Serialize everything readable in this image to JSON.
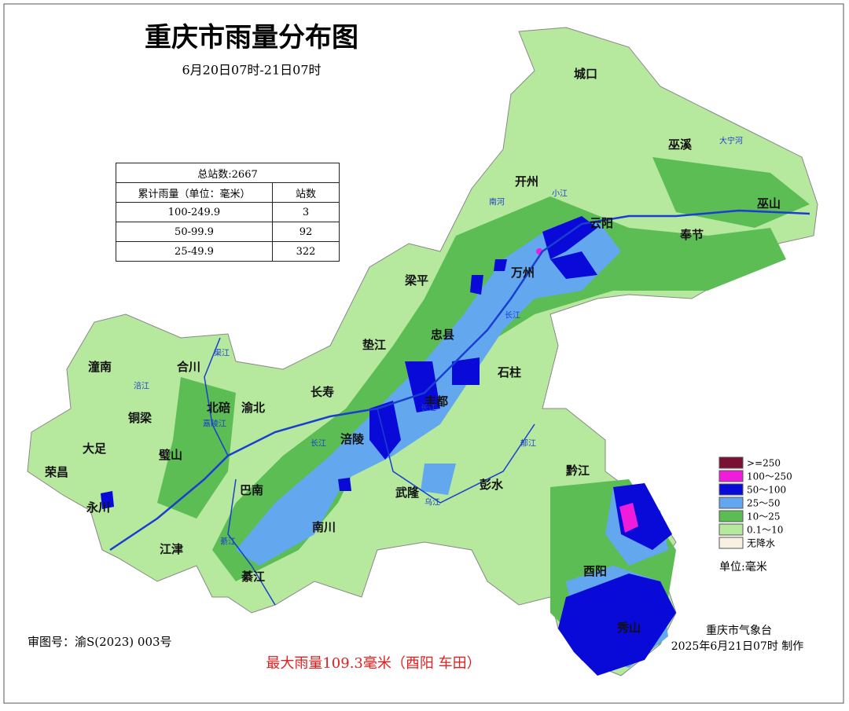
{
  "header": {
    "title": "重庆市雨量分布图",
    "subtitle": "6月20日07时-21日07时"
  },
  "table": {
    "title": "总站数:2667",
    "columns": [
      "累计雨量（单位：毫米）",
      "站数"
    ],
    "rows": [
      [
        "100-249.9",
        "3"
      ],
      [
        "50-99.9",
        "92"
      ],
      [
        "25-49.9",
        "322"
      ]
    ]
  },
  "legend": {
    "items": [
      {
        "label": ">=250",
        "color": "#7a1033"
      },
      {
        "label": "100～250",
        "color": "#f01cdc"
      },
      {
        "label": "50～100",
        "color": "#0a0ad8"
      },
      {
        "label": "25～50",
        "color": "#63a8ef"
      },
      {
        "label": "10～25",
        "color": "#5cbd55"
      },
      {
        "label": "0.1～10",
        "color": "#b6e89e"
      },
      {
        "label": "无降水",
        "color": "#f8f1e1"
      }
    ],
    "unit": "单位:毫米"
  },
  "places": [
    "城口",
    "巫溪",
    "开州",
    "巫山",
    "奉节",
    "云阳",
    "万州",
    "梁平",
    "忠县",
    "垫江",
    "石柱",
    "丰都",
    "长寿",
    "潼南",
    "合川",
    "铜梁",
    "北碚",
    "渝北",
    "大足",
    "荣昌",
    "璧山",
    "涪陵",
    "巴南",
    "武隆",
    "彭水",
    "黔江",
    "永川",
    "江津",
    "南川",
    "綦江",
    "酉阳",
    "秀山"
  ],
  "rivers": [
    "大宁河",
    "南河",
    "小江",
    "长江",
    "长江",
    "长江",
    "嘉陵江",
    "涪江",
    "乌江",
    "綦江",
    "渠江",
    "郁江"
  ],
  "footer": {
    "map_no": "审图号：渝S(2023) 003号",
    "max": "最大雨量109.3毫米（酉阳 车田）",
    "agency": "重庆市气象台",
    "made": "2025年6月21日07时 制作"
  }
}
